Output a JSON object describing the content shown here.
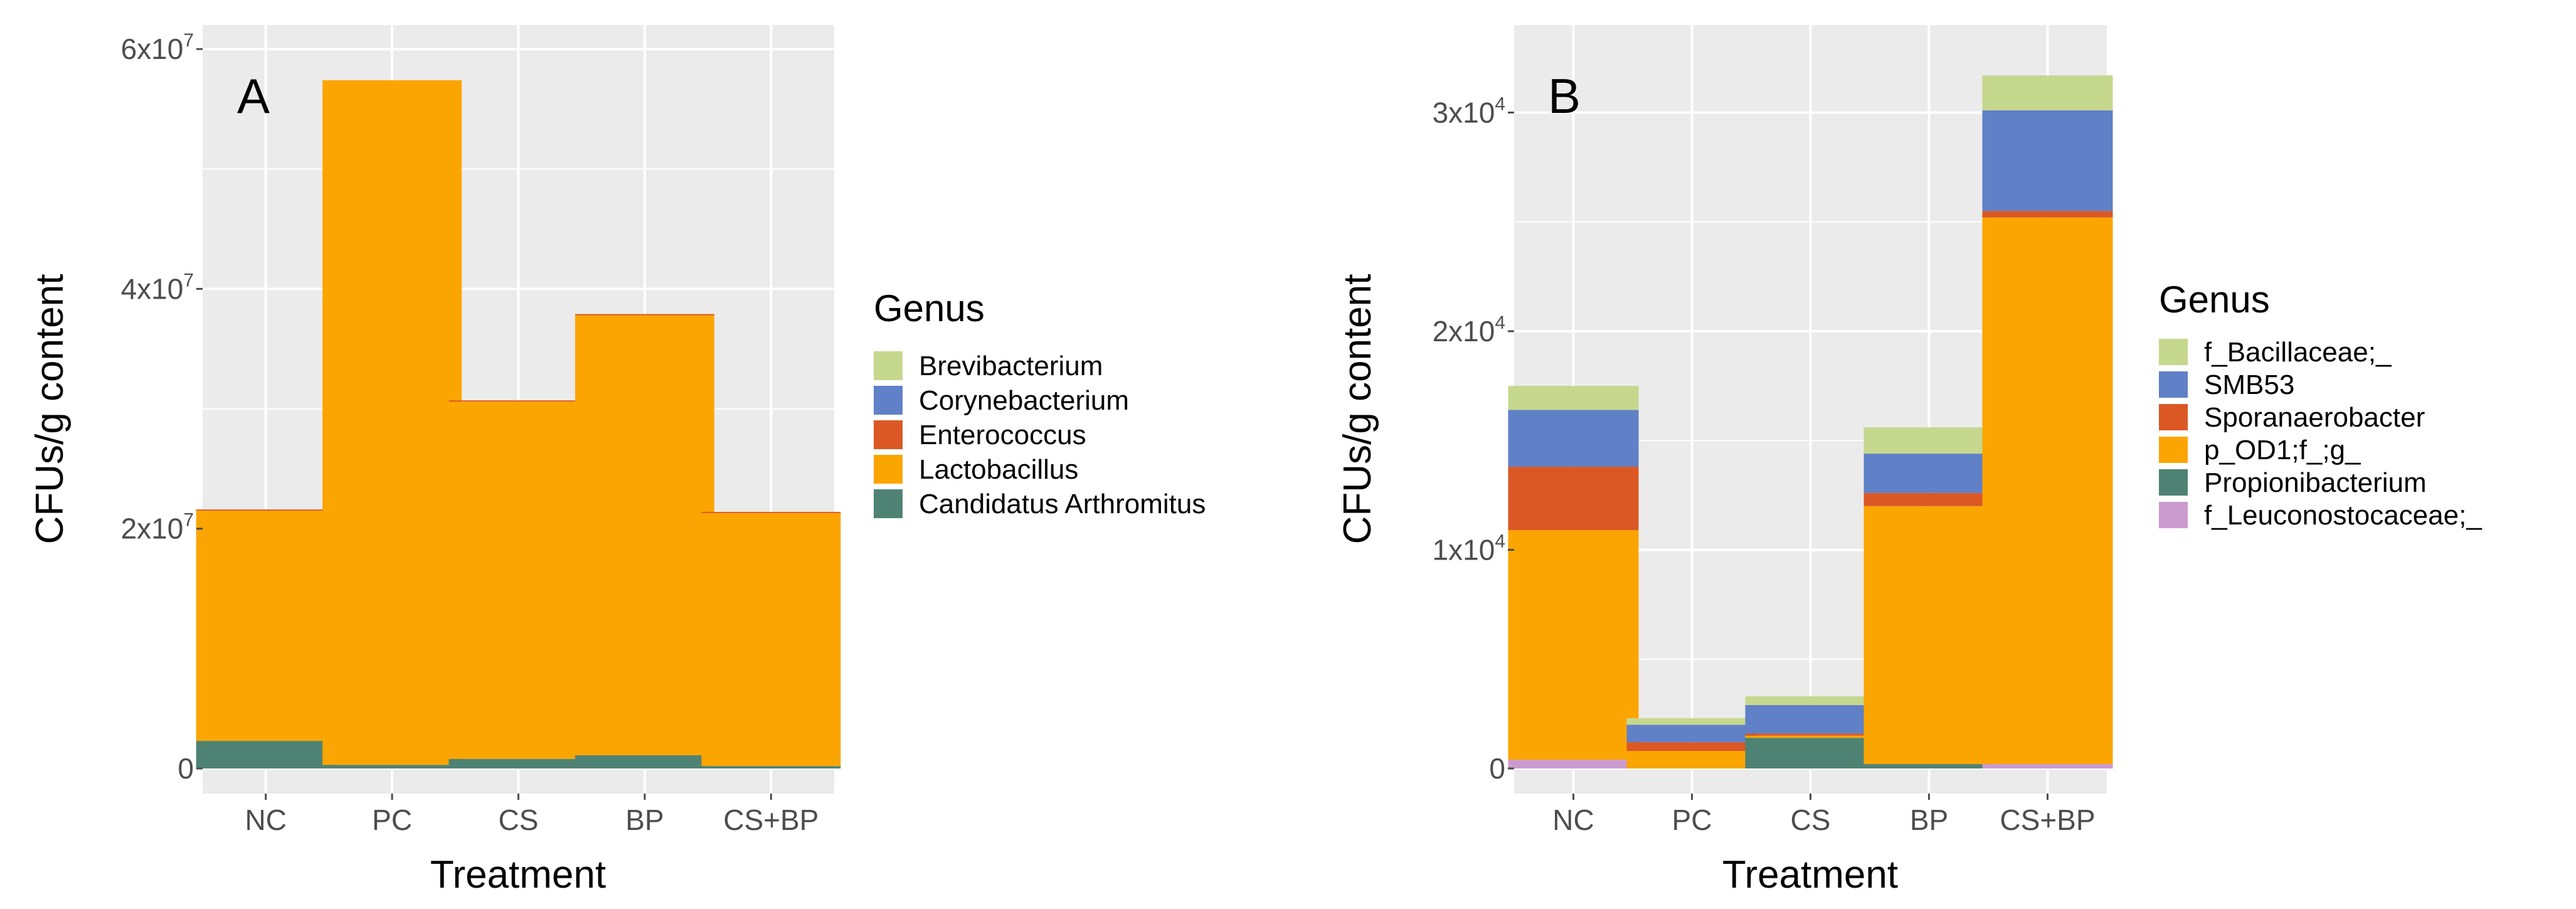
{
  "chart_data": [
    {
      "type": "bar",
      "stacked": true,
      "panel_label": "A",
      "title": "",
      "xlabel": "Treatment",
      "ylabel": "CFUs/g content",
      "categories": [
        "NC",
        "PC",
        "CS",
        "BP",
        "CS+BP"
      ],
      "ylim": [
        0,
        62000000
      ],
      "y_ticks": [
        {
          "value": 0,
          "base": "0",
          "exp": ""
        },
        {
          "value": 20000000,
          "base": "2x10",
          "exp": "7"
        },
        {
          "value": 40000000,
          "base": "4x10",
          "exp": "7"
        },
        {
          "value": 60000000,
          "base": "6x10",
          "exp": "7"
        }
      ],
      "grid": true,
      "legend_title": "Genus",
      "legend": [
        "Brevibacterium",
        "Corynebacterium",
        "Enterococcus",
        "Lactobacillus",
        "Candidatus Arthromitus"
      ],
      "series": [
        {
          "name": "Candidatus Arthromitus",
          "color": "#4E8374",
          "values": [
            2300000,
            300000,
            800000,
            1100000,
            200000
          ]
        },
        {
          "name": "Lactobacillus",
          "color": "#FBA502",
          "values": [
            19200000,
            57100000,
            29800000,
            36700000,
            21100000
          ]
        },
        {
          "name": "Enterococcus",
          "color": "#DB5825",
          "values": [
            100000,
            0,
            100000,
            100000,
            100000
          ]
        },
        {
          "name": "Corynebacterium",
          "color": "#6080C7",
          "values": [
            0,
            0,
            0,
            0,
            0
          ]
        },
        {
          "name": "Brevibacterium",
          "color": "#C6D78E",
          "values": [
            0,
            0,
            0,
            0,
            0
          ]
        }
      ]
    },
    {
      "type": "bar",
      "stacked": true,
      "panel_label": "B",
      "title": "",
      "xlabel": "Treatment",
      "ylabel": "CFUs/g content",
      "categories": [
        "NC",
        "PC",
        "CS",
        "BP",
        "CS+BP"
      ],
      "ylim": [
        0,
        34000
      ],
      "y_ticks": [
        {
          "value": 0,
          "base": "0",
          "exp": ""
        },
        {
          "value": 10000,
          "base": "1x10",
          "exp": "4"
        },
        {
          "value": 20000,
          "base": "2x10",
          "exp": "4"
        },
        {
          "value": 30000,
          "base": "3x10",
          "exp": "4"
        }
      ],
      "grid": true,
      "legend_title": "Genus",
      "legend": [
        "f_Bacillaceae;_",
        "SMB53",
        "Sporanaerobacter",
        "p_OD1;f_;g_",
        "Propionibacterium",
        "f_Leuconostocaceae;_"
      ],
      "series": [
        {
          "name": "f_Leuconostocaceae;_",
          "color": "#CB9BD0",
          "values": [
            400,
            0,
            0,
            0,
            200
          ]
        },
        {
          "name": "Propionibacterium",
          "color": "#4E8374",
          "values": [
            0,
            0,
            1400,
            200,
            0
          ]
        },
        {
          "name": "p_OD1;f_;g_",
          "color": "#FBA502",
          "values": [
            10500,
            800,
            100,
            11800,
            25000
          ]
        },
        {
          "name": "Sporanaerobacter",
          "color": "#DB5825",
          "values": [
            2900,
            400,
            100,
            600,
            300
          ]
        },
        {
          "name": "SMB53",
          "color": "#6080C7",
          "values": [
            2600,
            800,
            1300,
            1800,
            4600
          ]
        },
        {
          "name": "f_Bacillaceae;_",
          "color": "#C6D78E",
          "values": [
            1100,
            300,
            400,
            1200,
            1600
          ]
        }
      ]
    }
  ]
}
